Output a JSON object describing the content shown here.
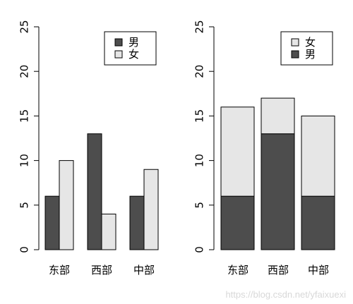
{
  "chart_data": [
    {
      "type": "bar",
      "mode": "grouped",
      "categories": [
        "东部",
        "西部",
        "中部"
      ],
      "series": [
        {
          "name": "男",
          "values": [
            6,
            13,
            6
          ],
          "color": "#4d4d4d"
        },
        {
          "name": "女",
          "values": [
            10,
            4,
            9
          ],
          "color": "#e6e6e6"
        }
      ],
      "ylim": [
        0,
        25
      ],
      "yticks": [
        0,
        5,
        10,
        15,
        20,
        25
      ],
      "legend": {
        "position": "top-right",
        "order": [
          "男",
          "女"
        ]
      },
      "grid": false
    },
    {
      "type": "bar",
      "mode": "stacked",
      "categories": [
        "东部",
        "西部",
        "中部"
      ],
      "series": [
        {
          "name": "男",
          "values": [
            6,
            13,
            6
          ],
          "color": "#4d4d4d"
        },
        {
          "name": "女",
          "values": [
            10,
            4,
            9
          ],
          "color": "#e6e6e6"
        }
      ],
      "ylim": [
        0,
        25
      ],
      "yticks": [
        0,
        5,
        10,
        15,
        20,
        25
      ],
      "legend": {
        "position": "top-right",
        "order": [
          "女",
          "男"
        ]
      },
      "grid": false
    }
  ],
  "watermark": "https://blog.csdn.net/yfaixuexi"
}
